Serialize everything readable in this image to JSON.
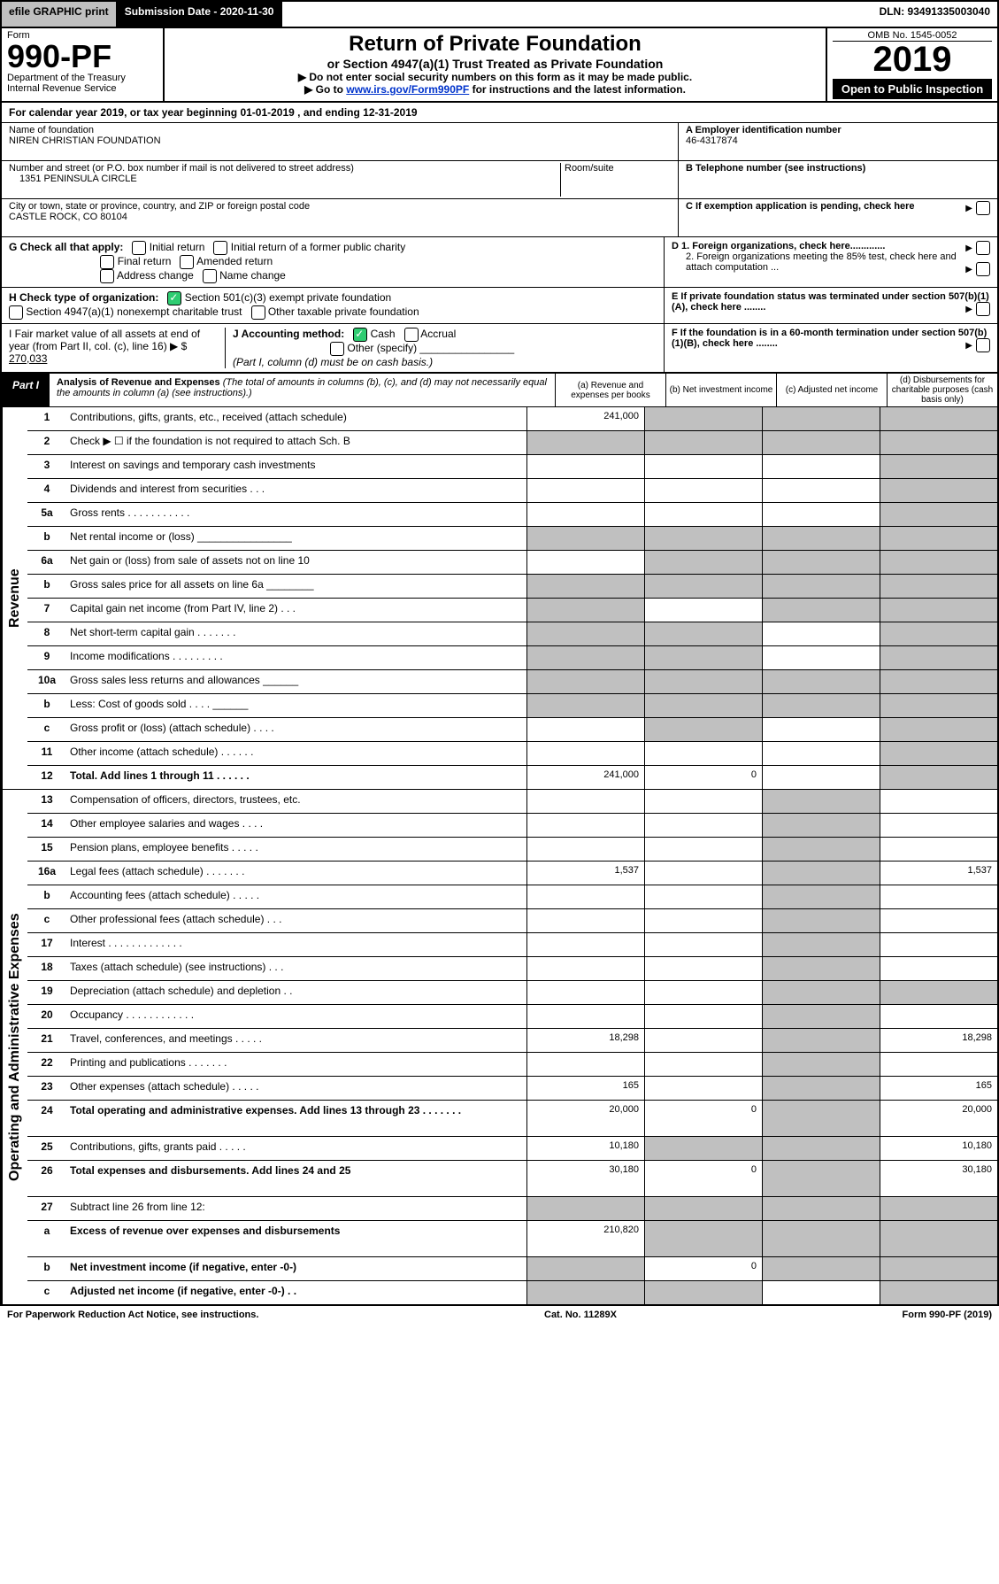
{
  "colors": {
    "black": "#000000",
    "white": "#ffffff",
    "grey": "#c0c0c0",
    "green": "#2ecc71",
    "link": "#0033cc"
  },
  "top": {
    "efile": "efile GRAPHIC print",
    "subdate": "Submission Date - 2020-11-30",
    "dln": "DLN: 93491335003040"
  },
  "header": {
    "form_label": "Form",
    "form_no": "990-PF",
    "dept": "Department of the Treasury",
    "irs": "Internal Revenue Service",
    "title": "Return of Private Foundation",
    "subtitle": "or Section 4947(a)(1) Trust Treated as Private Foundation",
    "note1": "▶ Do not enter social security numbers on this form as it may be made public.",
    "note2_pre": "▶ Go to ",
    "note2_link": "www.irs.gov/Form990PF",
    "note2_post": " for instructions and the latest information.",
    "omb": "OMB No. 1545-0052",
    "year": "2019",
    "open": "Open to Public Inspection"
  },
  "calyear": "For calendar year 2019, or tax year beginning 01-01-2019            , and ending 12-31-2019",
  "id": {
    "name_label": "Name of foundation",
    "name": "NIREN CHRISTIAN FOUNDATION",
    "addr_label": "Number and street (or P.O. box number if mail is not delivered to street address)",
    "addr": "1351 PENINSULA CIRCLE",
    "room_label": "Room/suite",
    "city_label": "City or town, state or province, country, and ZIP or foreign postal code",
    "city": "CASTLE ROCK, CO  80104",
    "a_label": "A Employer identification number",
    "a_val": "46-4317874",
    "b_label": "B Telephone number (see instructions)",
    "c_label": "C If exemption application is pending, check here",
    "d1": "D 1. Foreign organizations, check here.............",
    "d2": "2. Foreign organizations meeting the 85% test, check here and attach computation ...",
    "e": "E  If private foundation status was terminated under section 507(b)(1)(A), check here ........",
    "f": "F  If the foundation is in a 60-month termination under section 507(b)(1)(B), check here ........"
  },
  "g": {
    "label": "G Check all that apply:",
    "opts": [
      "Initial return",
      "Initial return of a former public charity",
      "Final return",
      "Amended return",
      "Address change",
      "Name change"
    ]
  },
  "h": {
    "label": "H Check type of organization:",
    "o1": "Section 501(c)(3) exempt private foundation",
    "o2": "Section 4947(a)(1) nonexempt charitable trust",
    "o3": "Other taxable private foundation"
  },
  "i": {
    "label": "I Fair market value of all assets at end of year (from Part II, col. (c), line 16) ▶ $",
    "val": "270,033"
  },
  "j": {
    "label": "J Accounting method:",
    "cash": "Cash",
    "accrual": "Accrual",
    "other": "Other (specify)",
    "note": "(Part I, column (d) must be on cash basis.)"
  },
  "part1": {
    "label": "Part I",
    "title": "Analysis of Revenue and Expenses",
    "desc": " (The total of amounts in columns (b), (c), and (d) may not necessarily equal the amounts in column (a) (see instructions).)",
    "cols": {
      "a": "(a) Revenue and expenses per books",
      "b": "(b) Net investment income",
      "c": "(c) Adjusted net income",
      "d": "(d) Disbursements for charitable purposes (cash basis only)"
    }
  },
  "revenue_label": "Revenue",
  "expenses_label": "Operating and Administrative Expenses",
  "rows": [
    {
      "n": "1",
      "d": "Contributions, gifts, grants, etc., received (attach schedule)",
      "a": "241,000",
      "bgrey": true,
      "cgrey": true,
      "dgrey": true
    },
    {
      "n": "2",
      "d": "Check ▶ ☐ if the foundation is not required to attach Sch. B",
      "agrey": true,
      "bgrey": true,
      "cgrey": true,
      "dgrey": true
    },
    {
      "n": "3",
      "d": "Interest on savings and temporary cash investments",
      "dgrey": true
    },
    {
      "n": "4",
      "d": "Dividends and interest from securities  .  .  .",
      "dgrey": true
    },
    {
      "n": "5a",
      "d": "Gross rents  .  .  .  .  .  .  .  .  .  .  .",
      "dgrey": true
    },
    {
      "n": "b",
      "d": "Net rental income or (loss)  ________________",
      "agrey": true,
      "bgrey": true,
      "cgrey": true,
      "dgrey": true
    },
    {
      "n": "6a",
      "d": "Net gain or (loss) from sale of assets not on line 10",
      "bgrey": true,
      "cgrey": true,
      "dgrey": true
    },
    {
      "n": "b",
      "d": "Gross sales price for all assets on line 6a ________",
      "agrey": true,
      "bgrey": true,
      "cgrey": true,
      "dgrey": true
    },
    {
      "n": "7",
      "d": "Capital gain net income (from Part IV, line 2)  .  .  .",
      "agrey": true,
      "cgrey": true,
      "dgrey": true
    },
    {
      "n": "8",
      "d": "Net short-term capital gain  .  .  .  .  .  .  .",
      "agrey": true,
      "bgrey": true,
      "dgrey": true
    },
    {
      "n": "9",
      "d": "Income modifications  .  .  .  .  .  .  .  .  .",
      "agrey": true,
      "bgrey": true,
      "dgrey": true
    },
    {
      "n": "10a",
      "d": "Gross sales less returns and allowances  ______",
      "agrey": true,
      "bgrey": true,
      "cgrey": true,
      "dgrey": true
    },
    {
      "n": "b",
      "d": "Less: Cost of goods sold  .  .  .  .  ______",
      "agrey": true,
      "bgrey": true,
      "cgrey": true,
      "dgrey": true
    },
    {
      "n": "c",
      "d": "Gross profit or (loss) (attach schedule)  .  .  .  .",
      "bgrey": true,
      "dgrey": true
    },
    {
      "n": "11",
      "d": "Other income (attach schedule)  .  .  .  .  .  .",
      "dgrey": true
    },
    {
      "n": "12",
      "d": "Total. Add lines 1 through 11  .  .  .  .  .  .",
      "bold": true,
      "a": "241,000",
      "b": "0",
      "dgrey": true
    }
  ],
  "exp_rows": [
    {
      "n": "13",
      "d": "Compensation of officers, directors, trustees, etc.",
      "cgrey": true
    },
    {
      "n": "14",
      "d": "Other employee salaries and wages  .  .  .  .",
      "cgrey": true
    },
    {
      "n": "15",
      "d": "Pension plans, employee benefits  .  .  .  .  .",
      "cgrey": true
    },
    {
      "n": "16a",
      "d": "Legal fees (attach schedule)  .  .  .  .  .  .  .",
      "a": "1,537",
      "cgrey": true,
      "dv": "1,537"
    },
    {
      "n": "b",
      "d": "Accounting fees (attach schedule)  .  .  .  .  .",
      "cgrey": true
    },
    {
      "n": "c",
      "d": "Other professional fees (attach schedule)  .  .  .",
      "cgrey": true
    },
    {
      "n": "17",
      "d": "Interest  .  .  .  .  .  .  .  .  .  .  .  .  .",
      "cgrey": true
    },
    {
      "n": "18",
      "d": "Taxes (attach schedule) (see instructions)  .  .  .",
      "cgrey": true
    },
    {
      "n": "19",
      "d": "Depreciation (attach schedule) and depletion  .  .",
      "cgrey": true,
      "dgrey": true
    },
    {
      "n": "20",
      "d": "Occupancy  .  .  .  .  .  .  .  .  .  .  .  .",
      "cgrey": true
    },
    {
      "n": "21",
      "d": "Travel, conferences, and meetings  .  .  .  .  .",
      "a": "18,298",
      "cgrey": true,
      "dv": "18,298"
    },
    {
      "n": "22",
      "d": "Printing and publications  .  .  .  .  .  .  .",
      "cgrey": true
    },
    {
      "n": "23",
      "d": "Other expenses (attach schedule)  .  .  .  .  .",
      "a": "165",
      "cgrey": true,
      "dv": "165"
    },
    {
      "n": "24",
      "d": "Total operating and administrative expenses. Add lines 13 through 23  .  .  .  .  .  .  .",
      "bold": true,
      "a": "20,000",
      "b": "0",
      "cgrey": true,
      "dv": "20,000",
      "tall": true
    },
    {
      "n": "25",
      "d": "Contributions, gifts, grants paid  .  .  .  .  .",
      "a": "10,180",
      "bgrey": true,
      "cgrey": true,
      "dv": "10,180"
    },
    {
      "n": "26",
      "d": "Total expenses and disbursements. Add lines 24 and 25",
      "bold": true,
      "a": "30,180",
      "b": "0",
      "cgrey": true,
      "dv": "30,180",
      "tall": true
    },
    {
      "n": "27",
      "d": "Subtract line 26 from line 12:",
      "agrey": true,
      "bgrey": true,
      "cgrey": true,
      "dgrey": true
    },
    {
      "n": "a",
      "d": "Excess of revenue over expenses and disbursements",
      "bold": true,
      "a": "210,820",
      "bgrey": true,
      "cgrey": true,
      "dgrey": true,
      "tall": true
    },
    {
      "n": "b",
      "d": "Net investment income (if negative, enter -0-)",
      "bold": true,
      "agrey": true,
      "b": "0",
      "cgrey": true,
      "dgrey": true
    },
    {
      "n": "c",
      "d": "Adjusted net income (if negative, enter -0-)  .  .",
      "bold": true,
      "agrey": true,
      "bgrey": true,
      "dgrey": true
    }
  ],
  "footer": {
    "left": "For Paperwork Reduction Act Notice, see instructions.",
    "mid": "Cat. No. 11289X",
    "right": "Form 990-PF (2019)"
  }
}
